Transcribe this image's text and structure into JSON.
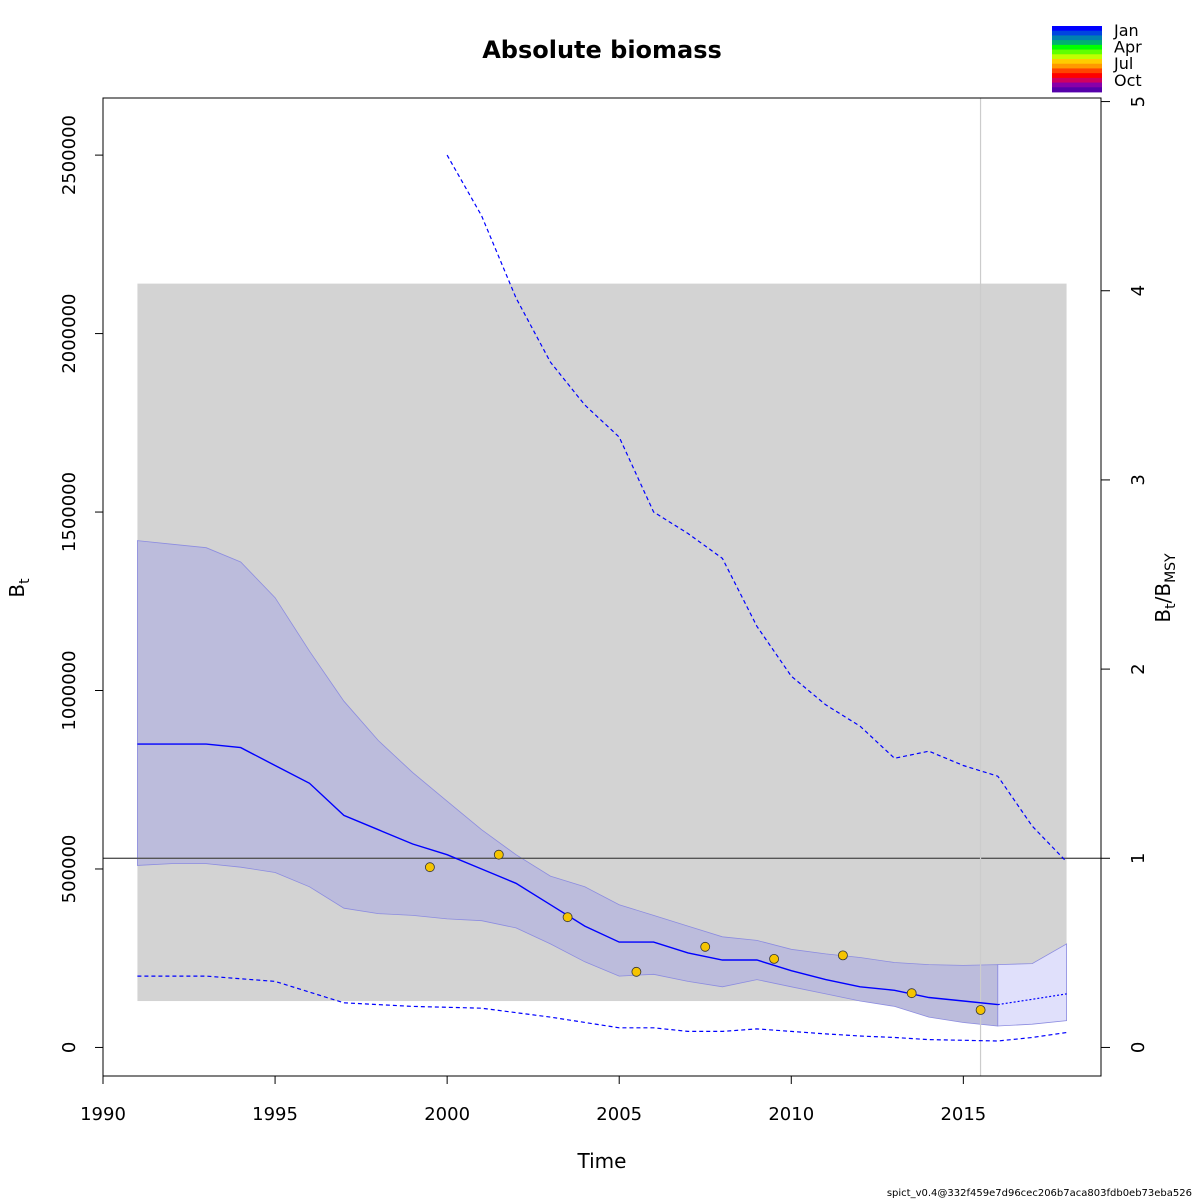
{
  "chart_data": {
    "type": "line",
    "title": "Absolute biomass",
    "xlabel": "Time",
    "ylabel": "B",
    "ylabel_sub": "t",
    "y2label": "B",
    "y2label_sub1": "t",
    "y2label_sep": "/B",
    "y2label_sub2": "MSY",
    "xlim": [
      1990,
      2019
    ],
    "ylim": [
      -80000,
      2660000
    ],
    "y2lim": [
      0,
      5
    ],
    "x_ticks": [
      "1990",
      "1995",
      "2000",
      "2005",
      "2010",
      "2015"
    ],
    "y_ticks": [
      "0",
      "500000",
      "1000000",
      "1500000",
      "2000000",
      "2500000"
    ],
    "y2_ticks": [
      "0",
      "1",
      "2",
      "3",
      "4",
      "5"
    ],
    "bmsy": 530000,
    "bmsy_ci_region": {
      "x": [
        1991,
        2018
      ],
      "y": [
        130000,
        2140000
      ]
    },
    "vertical_line_x": 2015.5,
    "biomass": {
      "x": [
        1991,
        1992,
        1993,
        1994,
        1995,
        1996,
        1997,
        1998,
        1999,
        2000,
        2001,
        2002,
        2003,
        2004,
        2005,
        2006,
        2007,
        2008,
        2009,
        2010,
        2011,
        2012,
        2013,
        2014,
        2015,
        2016
      ],
      "y": [
        850000,
        850000,
        850000,
        840000,
        790000,
        740000,
        650000,
        610000,
        570000,
        540000,
        500000,
        460000,
        400000,
        340000,
        295000,
        295000,
        265000,
        245000,
        245000,
        215000,
        190000,
        170000,
        160000,
        140000,
        130000,
        120000
      ]
    },
    "biomass_forecast": {
      "x": [
        2016,
        2017,
        2018
      ],
      "y": [
        120000,
        135000,
        150000
      ]
    },
    "ci_upper": {
      "x": [
        1991,
        1992,
        1993,
        1994,
        1995,
        1996,
        1997,
        1998,
        1999,
        2000,
        2001,
        2002,
        2003,
        2004,
        2005,
        2006,
        2007,
        2008,
        2009,
        2010,
        2011,
        2012,
        2013,
        2014,
        2015,
        2016,
        2017,
        2018
      ],
      "y": [
        1420000,
        1410000,
        1400000,
        1360000,
        1260000,
        1110000,
        970000,
        860000,
        770000,
        690000,
        610000,
        540000,
        480000,
        450000,
        400000,
        370000,
        340000,
        310000,
        300000,
        275000,
        262000,
        252000,
        238000,
        232000,
        230000,
        232000,
        235000,
        290000
      ]
    },
    "ci_lower": {
      "x": [
        1991,
        1992,
        1993,
        1994,
        1995,
        1996,
        1997,
        1998,
        1999,
        2000,
        2001,
        2002,
        2003,
        2004,
        2005,
        2006,
        2007,
        2008,
        2009,
        2010,
        2011,
        2012,
        2013,
        2014,
        2015,
        2016,
        2017,
        2018
      ],
      "y": [
        510000,
        515000,
        515000,
        505000,
        490000,
        450000,
        390000,
        375000,
        370000,
        360000,
        355000,
        335000,
        290000,
        240000,
        200000,
        205000,
        185000,
        170000,
        190000,
        170000,
        150000,
        130000,
        115000,
        85000,
        70000,
        60000,
        65000,
        75000
      ]
    },
    "bbmsy_upper": {
      "x": [
        2000,
        2001,
        2002,
        2003,
        2004,
        2005,
        2006,
        2007,
        2008,
        2009,
        2010,
        2011,
        2012,
        2013,
        2014,
        2015,
        2016,
        2017,
        2018
      ],
      "y": [
        2500000,
        2330000,
        2100000,
        1920000,
        1800000,
        1710000,
        1500000,
        1440000,
        1370000,
        1180000,
        1040000,
        960000,
        900000,
        810000,
        830000,
        790000,
        760000,
        620000,
        520000
      ]
    },
    "bbmsy_lower": {
      "x": [
        1991,
        1993,
        1995,
        1997,
        1999,
        2001,
        2003,
        2005,
        2006,
        2007,
        2008,
        2009,
        2010,
        2011,
        2012,
        2013,
        2014,
        2015,
        2016,
        2017,
        2018
      ],
      "y": [
        200000,
        200000,
        185000,
        125000,
        115000,
        110000,
        85000,
        55000,
        55000,
        45000,
        45000,
        52000,
        45000,
        38000,
        32000,
        28000,
        22000,
        20000,
        18000,
        28000,
        42000
      ]
    },
    "observations": {
      "x": [
        1999.5,
        2001.5,
        2003.5,
        2005.5,
        2007.5,
        2009.5,
        2011.5,
        2013.5,
        2015.5
      ],
      "y": [
        505000,
        540000,
        365000,
        212000,
        282000,
        248000,
        258000,
        152000,
        105000
      ]
    },
    "colors": {
      "bmsy_region": "#d3d3d3",
      "ci_band": "#bcbcdc",
      "ci_band_forecast": "#e0e0fb",
      "ci_edge": "#8c8ce0",
      "line": "#0000ff",
      "observation_fill": "#f5c400",
      "bmsy_line": "#555555",
      "vline": "#cccccc"
    },
    "legend": {
      "position": "top-right",
      "labels": [
        "Jan",
        "Apr",
        "Jul",
        "Oct"
      ],
      "colors": [
        "#0000ff",
        "#0044e0",
        "#0080b0",
        "#00b070",
        "#00ff00",
        "#60ff00",
        "#c0ff00",
        "#ffcc00",
        "#ff9900",
        "#ff4400",
        "#ff0000",
        "#d00060",
        "#8800aa",
        "#5500aa"
      ]
    },
    "footer": "spict_v0.4@332f459e7d96cec206b7aca803fdb0eb73eba526"
  }
}
